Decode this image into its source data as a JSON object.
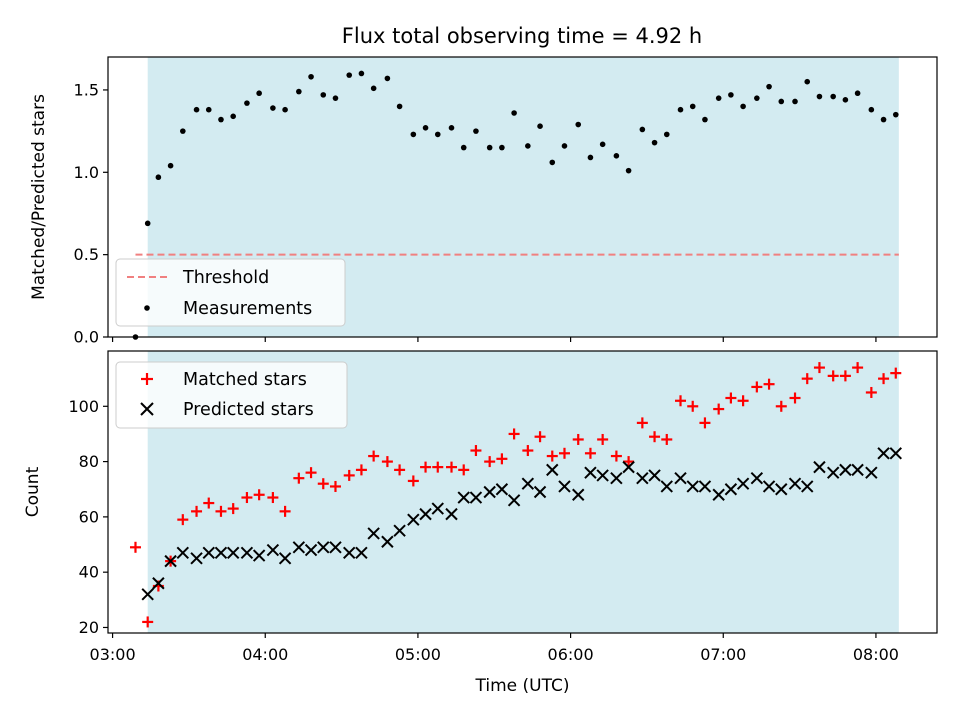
{
  "figure": {
    "title": "Flux total observing time = 4.92 h",
    "xlabel": "Time (UTC)",
    "x_ticks": [
      "03:00",
      "04:00",
      "05:00",
      "06:00",
      "07:00",
      "08:00"
    ],
    "shade_color": "#d3ebf1",
    "shade_range": [
      3.23,
      8.15
    ],
    "x_range": [
      2.97,
      8.4
    ]
  },
  "chart_data": [
    {
      "type": "scatter",
      "name": "ratio-panel",
      "ylabel": "Matched/Predicted stars",
      "ylim": [
        0,
        1.7
      ],
      "y_ticks": [
        0.0,
        0.5,
        1.0,
        1.5
      ],
      "y_tick_labels": [
        "0.0",
        "0.5",
        "1.0",
        "1.5"
      ],
      "threshold": {
        "label": "Threshold",
        "value": 0.5,
        "x_start": 3.15,
        "x_end": 8.15,
        "color": "#f08080"
      },
      "series": [
        {
          "name": "Measurements",
          "color": "#000000",
          "x": [
            3.15,
            3.23,
            3.3,
            3.38,
            3.46,
            3.55,
            3.63,
            3.71,
            3.79,
            3.88,
            3.96,
            4.05,
            4.13,
            4.22,
            4.3,
            4.38,
            4.46,
            4.55,
            4.63,
            4.71,
            4.8,
            4.88,
            4.97,
            5.05,
            5.13,
            5.22,
            5.3,
            5.38,
            5.47,
            5.55,
            5.63,
            5.72,
            5.8,
            5.88,
            5.96,
            6.05,
            6.13,
            6.21,
            6.3,
            6.38,
            6.47,
            6.55,
            6.63,
            6.72,
            6.8,
            6.88,
            6.97,
            7.05,
            7.13,
            7.22,
            7.3,
            7.38,
            7.47,
            7.55,
            7.63,
            7.72,
            7.8,
            7.88,
            7.97,
            8.05,
            8.13
          ],
          "y": [
            0.0,
            0.69,
            0.97,
            1.04,
            1.25,
            1.38,
            1.38,
            1.32,
            1.34,
            1.42,
            1.48,
            1.39,
            1.38,
            1.49,
            1.58,
            1.47,
            1.45,
            1.59,
            1.6,
            1.51,
            1.57,
            1.4,
            1.23,
            1.27,
            1.23,
            1.27,
            1.15,
            1.25,
            1.15,
            1.15,
            1.36,
            1.16,
            1.28,
            1.06,
            1.16,
            1.29,
            1.09,
            1.17,
            1.1,
            1.01,
            1.26,
            1.18,
            1.23,
            1.38,
            1.4,
            1.32,
            1.45,
            1.47,
            1.4,
            1.45,
            1.52,
            1.43,
            1.43,
            1.55,
            1.46,
            1.46,
            1.44,
            1.48,
            1.38,
            1.32,
            1.35
          ]
        }
      ],
      "legend": {
        "placement": "lower-left",
        "entries": [
          "Threshold",
          "Measurements"
        ]
      }
    },
    {
      "type": "scatter",
      "name": "count-panel",
      "ylabel": "Count",
      "ylim": [
        18,
        120
      ],
      "y_ticks": [
        20,
        40,
        60,
        80,
        100
      ],
      "y_tick_labels": [
        "20",
        "40",
        "60",
        "80",
        "100"
      ],
      "series": [
        {
          "name": "Matched stars",
          "marker": "plus",
          "color": "#ff0000",
          "x": [
            3.15,
            3.23,
            3.3,
            3.38,
            3.46,
            3.55,
            3.63,
            3.71,
            3.79,
            3.88,
            3.96,
            4.05,
            4.13,
            4.22,
            4.3,
            4.38,
            4.46,
            4.55,
            4.63,
            4.71,
            4.8,
            4.88,
            4.97,
            5.05,
            5.13,
            5.22,
            5.3,
            5.38,
            5.47,
            5.55,
            5.63,
            5.72,
            5.8,
            5.88,
            5.96,
            6.05,
            6.13,
            6.21,
            6.3,
            6.38,
            6.47,
            6.55,
            6.63,
            6.72,
            6.8,
            6.88,
            6.97,
            7.05,
            7.13,
            7.22,
            7.3,
            7.38,
            7.47,
            7.55,
            7.63,
            7.72,
            7.8,
            7.88,
            7.97,
            8.05,
            8.13
          ],
          "y": [
            49,
            22,
            35,
            44,
            59,
            62,
            65,
            62,
            63,
            67,
            68,
            67,
            62,
            74,
            76,
            72,
            71,
            75,
            77,
            82,
            80,
            77,
            73,
            78,
            78,
            78,
            77,
            84,
            80,
            81,
            90,
            84,
            89,
            82,
            83,
            88,
            83,
            88,
            82,
            80,
            94,
            89,
            88,
            102,
            100,
            94,
            99,
            103,
            102,
            107,
            108,
            100,
            103,
            110,
            114,
            111,
            111,
            114,
            105,
            110,
            112
          ]
        },
        {
          "name": "Predicted stars",
          "marker": "x",
          "color": "#000000",
          "x": [
            3.23,
            3.3,
            3.38,
            3.46,
            3.55,
            3.63,
            3.71,
            3.79,
            3.88,
            3.96,
            4.05,
            4.13,
            4.22,
            4.3,
            4.38,
            4.46,
            4.55,
            4.63,
            4.71,
            4.8,
            4.88,
            4.97,
            5.05,
            5.13,
            5.22,
            5.3,
            5.38,
            5.47,
            5.55,
            5.63,
            5.72,
            5.8,
            5.88,
            5.96,
            6.05,
            6.13,
            6.21,
            6.3,
            6.38,
            6.47,
            6.55,
            6.63,
            6.72,
            6.8,
            6.88,
            6.97,
            7.05,
            7.13,
            7.22,
            7.3,
            7.38,
            7.47,
            7.55,
            7.63,
            7.72,
            7.8,
            7.88,
            7.97,
            8.05,
            8.13
          ],
          "y": [
            32,
            36,
            44,
            47,
            45,
            47,
            47,
            47,
            47,
            46,
            48,
            45,
            49,
            48,
            49,
            49,
            47,
            47,
            54,
            51,
            55,
            59,
            61,
            63,
            61,
            67,
            67,
            69,
            70,
            66,
            72,
            69,
            77,
            71,
            68,
            76,
            75,
            74,
            78,
            74,
            75,
            71,
            74,
            71,
            71,
            68,
            70,
            72,
            74,
            71,
            70,
            72,
            71,
            78,
            76,
            77,
            77,
            76,
            83,
            83
          ]
        }
      ],
      "legend": {
        "placement": "upper-left",
        "entries": [
          "Matched stars",
          "Predicted stars"
        ]
      }
    }
  ]
}
